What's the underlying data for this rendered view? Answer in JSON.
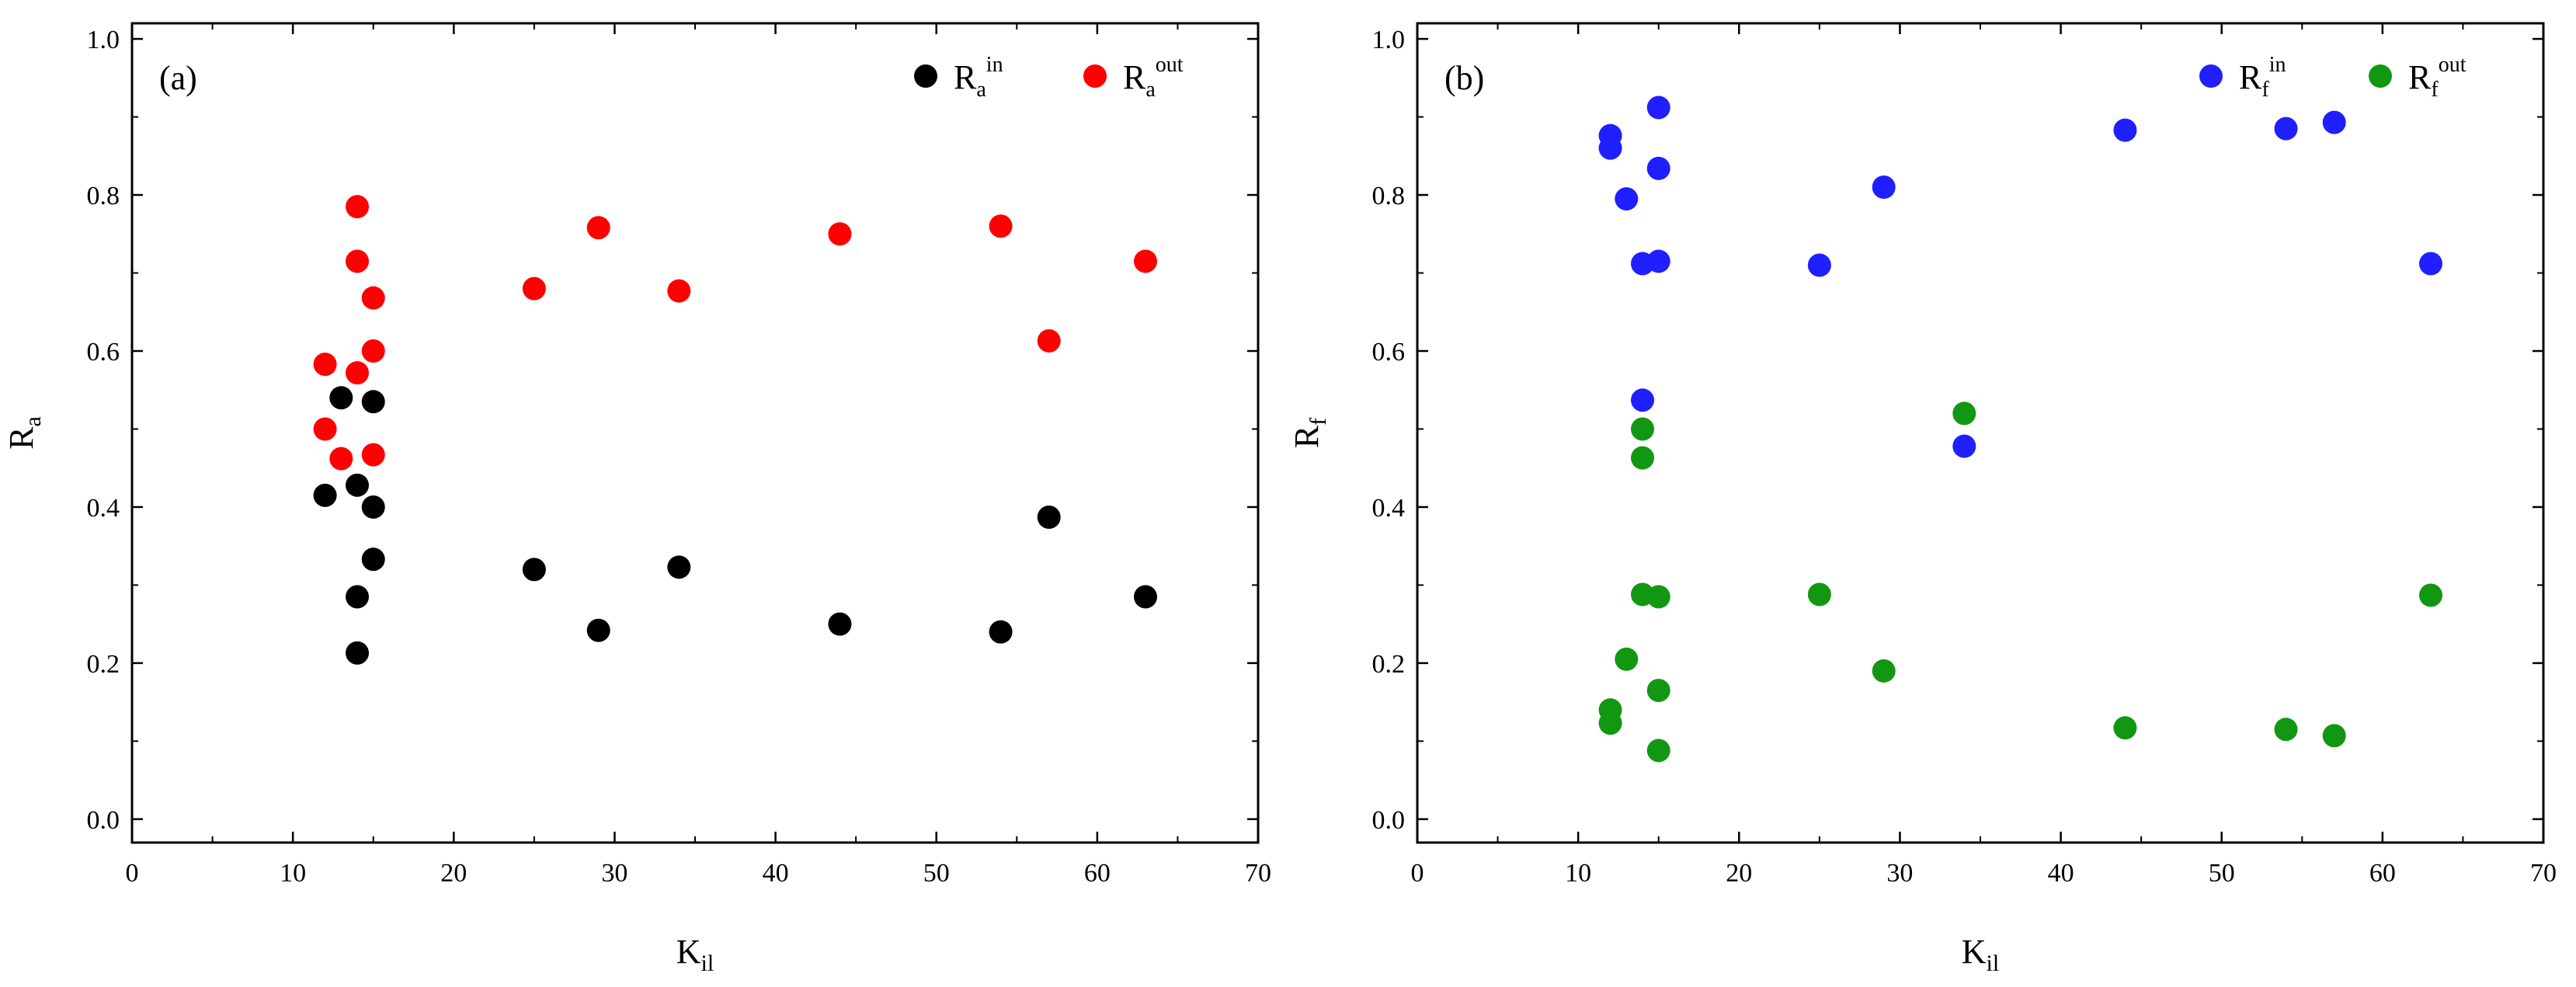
{
  "chart_data": [
    {
      "type": "scatter",
      "panel_label": "(a)",
      "xlabel": {
        "main": "K",
        "sub": "il"
      },
      "ylabel": {
        "main": "R",
        "sub": "a"
      },
      "xlim": [
        0,
        70
      ],
      "ylim": [
        -0.03,
        1.02
      ],
      "xticks": [
        0,
        10,
        20,
        30,
        40,
        50,
        60,
        70
      ],
      "yticks": [
        0.0,
        0.2,
        0.4,
        0.6,
        0.8,
        1.0
      ],
      "xtick_labels": [
        "0",
        "10",
        "20",
        "30",
        "40",
        "50",
        "60",
        "70"
      ],
      "ytick_labels": [
        "0.0",
        "0.2",
        "0.4",
        "0.6",
        "0.8",
        "1.0"
      ],
      "grid": false,
      "legend_position": "top-right",
      "series": [
        {
          "name": {
            "main": "R",
            "sub": "a",
            "sup": "in"
          },
          "color": "#000000",
          "points": [
            [
              12,
              0.415
            ],
            [
              13,
              0.54
            ],
            [
              14,
              0.428
            ],
            [
              14,
              0.285
            ],
            [
              14,
              0.213
            ],
            [
              15,
              0.535
            ],
            [
              15,
              0.4
            ],
            [
              15,
              0.333
            ],
            [
              25,
              0.32
            ],
            [
              29,
              0.242
            ],
            [
              34,
              0.323
            ],
            [
              44,
              0.25
            ],
            [
              54,
              0.24
            ],
            [
              57,
              0.387
            ],
            [
              63,
              0.285
            ]
          ]
        },
        {
          "name": {
            "main": "R",
            "sub": "a",
            "sup": "out"
          },
          "color": "#ff0000",
          "points": [
            [
              12,
              0.583
            ],
            [
              12,
              0.5
            ],
            [
              13,
              0.462
            ],
            [
              14,
              0.785
            ],
            [
              14,
              0.715
            ],
            [
              14,
              0.572
            ],
            [
              15,
              0.668
            ],
            [
              15,
              0.6
            ],
            [
              15,
              0.467
            ],
            [
              25,
              0.68
            ],
            [
              29,
              0.758
            ],
            [
              34,
              0.677
            ],
            [
              44,
              0.75
            ],
            [
              54,
              0.76
            ],
            [
              57,
              0.613
            ],
            [
              63,
              0.715
            ]
          ]
        }
      ]
    },
    {
      "type": "scatter",
      "panel_label": "(b)",
      "xlabel": {
        "main": "K",
        "sub": "il"
      },
      "ylabel": {
        "main": "R",
        "sub": "f"
      },
      "xlim": [
        0,
        70
      ],
      "ylim": [
        -0.03,
        1.02
      ],
      "xticks": [
        0,
        10,
        20,
        30,
        40,
        50,
        60,
        70
      ],
      "yticks": [
        0.0,
        0.2,
        0.4,
        0.6,
        0.8,
        1.0
      ],
      "xtick_labels": [
        "0",
        "10",
        "20",
        "30",
        "40",
        "50",
        "60",
        "70"
      ],
      "ytick_labels": [
        "0.0",
        "0.2",
        "0.4",
        "0.6",
        "0.8",
        "1.0"
      ],
      "grid": false,
      "legend_position": "top-right",
      "series": [
        {
          "name": {
            "main": "R",
            "sub": "f",
            "sup": "in"
          },
          "color": "#1f1fff",
          "points": [
            [
              12,
              0.876
            ],
            [
              12,
              0.86
            ],
            [
              13,
              0.795
            ],
            [
              14,
              0.712
            ],
            [
              14,
              0.537
            ],
            [
              15,
              0.912
            ],
            [
              15,
              0.834
            ],
            [
              15,
              0.715
            ],
            [
              25,
              0.71
            ],
            [
              29,
              0.81
            ],
            [
              34,
              0.478
            ],
            [
              44,
              0.883
            ],
            [
              54,
              0.885
            ],
            [
              57,
              0.893
            ],
            [
              63,
              0.712
            ]
          ]
        },
        {
          "name": {
            "main": "R",
            "sub": "f",
            "sup": "out"
          },
          "color": "#129712",
          "points": [
            [
              12,
              0.14
            ],
            [
              12,
              0.123
            ],
            [
              13,
              0.205
            ],
            [
              14,
              0.5
            ],
            [
              14,
              0.463
            ],
            [
              14,
              0.288
            ],
            [
              15,
              0.285
            ],
            [
              15,
              0.165
            ],
            [
              15,
              0.088
            ],
            [
              25,
              0.288
            ],
            [
              29,
              0.19
            ],
            [
              34,
              0.52
            ],
            [
              44,
              0.117
            ],
            [
              54,
              0.115
            ],
            [
              57,
              0.107
            ],
            [
              63,
              0.287
            ]
          ]
        }
      ]
    }
  ]
}
